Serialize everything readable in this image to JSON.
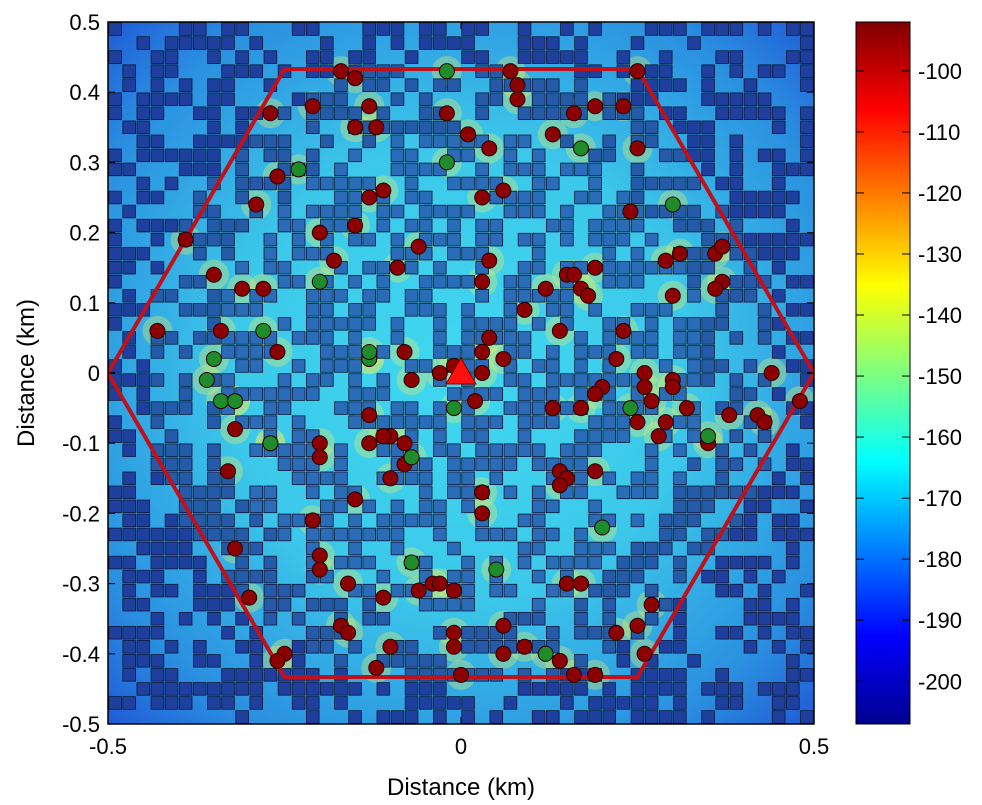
{
  "chart_data": {
    "type": "scatter",
    "title": "",
    "xlabel": "Distance (km)",
    "ylabel": "Distance (km)",
    "xlim": [
      -0.5,
      0.5
    ],
    "ylim": [
      -0.5,
      0.5
    ],
    "xticks": [
      -0.5,
      0,
      0.5
    ],
    "xtick_labels": [
      "-0.5",
      "0",
      "0.5"
    ],
    "yticks": [
      0.5,
      0.4,
      0.3,
      0.2,
      0.1,
      0,
      -0.1,
      -0.2,
      -0.3,
      -0.4,
      -0.5
    ],
    "ytick_labels": [
      "0.5",
      "0.4",
      "0.3",
      "0.2",
      "0.1",
      "0",
      "-0.1",
      "-0.2",
      "-0.3",
      "-0.4",
      "-0.5"
    ],
    "colorbar": {
      "colormap": "jet",
      "range": [
        -207,
        -92
      ],
      "ticks": [
        -100,
        -110,
        -120,
        -130,
        -140,
        -150,
        -160,
        -170,
        -180,
        -190,
        -200
      ],
      "tick_labels": [
        "-100",
        "-110",
        "-120",
        "-130",
        "-140",
        "-150",
        "-160",
        "-170",
        "-180",
        "-190",
        "-200"
      ]
    },
    "hexagon": {
      "color": "#c0101a",
      "vertices": [
        [
          0.5,
          0
        ],
        [
          0.25,
          0.433
        ],
        [
          -0.25,
          0.433
        ],
        [
          -0.5,
          0
        ],
        [
          -0.25,
          -0.433
        ],
        [
          0.25,
          -0.433
        ]
      ]
    },
    "base_station": {
      "x": 0,
      "y": 0,
      "color": "#ff1010",
      "marker": "triangle"
    },
    "grid_cells": {
      "spacing": 0.02,
      "color": "#1e5aa0",
      "marker": "square"
    },
    "series": [
      {
        "marker": "circle",
        "color": "#8b0000",
        "points": [
          [
            -0.17,
            0.43
          ],
          [
            -0.15,
            0.42
          ],
          [
            0.07,
            0.43
          ],
          [
            0.08,
            0.41
          ],
          [
            0.08,
            0.39
          ],
          [
            0.25,
            0.43
          ],
          [
            0.19,
            0.38
          ],
          [
            0.23,
            0.38
          ],
          [
            -0.27,
            0.37
          ],
          [
            -0.21,
            0.38
          ],
          [
            -0.13,
            0.38
          ],
          [
            -0.02,
            0.37
          ],
          [
            0.16,
            0.37
          ],
          [
            -0.15,
            0.35
          ],
          [
            -0.12,
            0.35
          ],
          [
            0.01,
            0.34
          ],
          [
            0.04,
            0.32
          ],
          [
            0.13,
            0.34
          ],
          [
            0.25,
            0.32
          ],
          [
            -0.26,
            0.28
          ],
          [
            -0.13,
            0.25
          ],
          [
            -0.11,
            0.26
          ],
          [
            0.03,
            0.25
          ],
          [
            0.06,
            0.26
          ],
          [
            -0.29,
            0.24
          ],
          [
            0.24,
            0.23
          ],
          [
            -0.2,
            0.2
          ],
          [
            -0.15,
            0.21
          ],
          [
            -0.06,
            0.18
          ],
          [
            0.36,
            0.17
          ],
          [
            0.37,
            0.18
          ],
          [
            -0.39,
            0.19
          ],
          [
            -0.18,
            0.16
          ],
          [
            0.04,
            0.16
          ],
          [
            0.29,
            0.16
          ],
          [
            0.31,
            0.17
          ],
          [
            -0.35,
            0.14
          ],
          [
            -0.09,
            0.15
          ],
          [
            0.15,
            0.14
          ],
          [
            0.16,
            0.14
          ],
          [
            0.19,
            0.15
          ],
          [
            0.37,
            0.13
          ],
          [
            -0.31,
            0.12
          ],
          [
            -0.28,
            0.12
          ],
          [
            0.03,
            0.13
          ],
          [
            0.12,
            0.12
          ],
          [
            0.17,
            0.12
          ],
          [
            0.36,
            0.12
          ],
          [
            0.3,
            0.11
          ],
          [
            0.18,
            0.11
          ],
          [
            0.09,
            0.09
          ],
          [
            -0.43,
            0.06
          ],
          [
            -0.34,
            0.06
          ],
          [
            0.04,
            0.05
          ],
          [
            0.14,
            0.06
          ],
          [
            0.23,
            0.06
          ],
          [
            -0.26,
            0.03
          ],
          [
            0.03,
            0.03
          ],
          [
            -0.08,
            0.03
          ],
          [
            -0.03,
            0.0
          ],
          [
            -0.01,
            0.01
          ],
          [
            0.06,
            0.02
          ],
          [
            0.22,
            0.02
          ],
          [
            0.03,
            0.0
          ],
          [
            -0.07,
            -0.01
          ],
          [
            0.26,
            0.0
          ],
          [
            0.3,
            -0.01
          ],
          [
            0.44,
            0.0
          ],
          [
            0.2,
            -0.02
          ],
          [
            0.26,
            -0.02
          ],
          [
            0.48,
            -0.04
          ],
          [
            -0.32,
            -0.04
          ],
          [
            0.02,
            -0.04
          ],
          [
            0.19,
            -0.03
          ],
          [
            0.27,
            -0.04
          ],
          [
            0.3,
            -0.02
          ],
          [
            0.32,
            -0.05
          ],
          [
            0.42,
            -0.06
          ],
          [
            0.43,
            -0.07
          ],
          [
            -0.13,
            -0.06
          ],
          [
            0.13,
            -0.05
          ],
          [
            0.17,
            -0.05
          ],
          [
            -0.32,
            -0.08
          ],
          [
            0.25,
            -0.07
          ],
          [
            0.28,
            -0.09
          ],
          [
            0.29,
            -0.07
          ],
          [
            0.38,
            -0.06
          ],
          [
            -0.1,
            -0.09
          ],
          [
            -0.13,
            -0.1
          ],
          [
            -0.2,
            -0.1
          ],
          [
            -0.11,
            -0.09
          ],
          [
            -0.08,
            -0.1
          ],
          [
            0.35,
            -0.1
          ],
          [
            -0.2,
            -0.12
          ],
          [
            -0.08,
            -0.13
          ],
          [
            -0.1,
            -0.15
          ],
          [
            -0.33,
            -0.14
          ],
          [
            0.14,
            -0.14
          ],
          [
            0.15,
            -0.15
          ],
          [
            0.14,
            -0.16
          ],
          [
            0.19,
            -0.14
          ],
          [
            0.03,
            -0.17
          ],
          [
            -0.15,
            -0.18
          ],
          [
            0.03,
            -0.2
          ],
          [
            -0.21,
            -0.21
          ],
          [
            -0.32,
            -0.25
          ],
          [
            -0.2,
            -0.26
          ],
          [
            -0.2,
            -0.28
          ],
          [
            -0.16,
            -0.3
          ],
          [
            -0.04,
            -0.3
          ],
          [
            -0.03,
            -0.3
          ],
          [
            0.15,
            -0.3
          ],
          [
            0.17,
            -0.3
          ],
          [
            -0.3,
            -0.32
          ],
          [
            -0.11,
            -0.32
          ],
          [
            -0.06,
            -0.31
          ],
          [
            -0.01,
            -0.31
          ],
          [
            0.27,
            -0.33
          ],
          [
            -0.17,
            -0.36
          ],
          [
            -0.16,
            -0.37
          ],
          [
            0.06,
            -0.36
          ],
          [
            0.22,
            -0.37
          ],
          [
            0.25,
            -0.36
          ],
          [
            -0.01,
            -0.37
          ],
          [
            -0.01,
            -0.39
          ],
          [
            -0.1,
            -0.39
          ],
          [
            0.06,
            -0.4
          ],
          [
            0.09,
            -0.39
          ],
          [
            0.26,
            -0.4
          ],
          [
            -0.25,
            -0.4
          ],
          [
            -0.26,
            -0.41
          ],
          [
            -0.12,
            -0.42
          ],
          [
            0.14,
            -0.41
          ],
          [
            0.16,
            -0.43
          ],
          [
            0.19,
            -0.43
          ],
          [
            0.0,
            -0.43
          ]
        ]
      },
      {
        "marker": "circle",
        "color": "#1e8c2a",
        "points": [
          [
            -0.02,
            0.43
          ],
          [
            -0.23,
            0.29
          ],
          [
            -0.02,
            0.3
          ],
          [
            0.17,
            0.32
          ],
          [
            0.3,
            0.24
          ],
          [
            -0.2,
            0.13
          ],
          [
            -0.28,
            0.06
          ],
          [
            -0.35,
            0.02
          ],
          [
            -0.36,
            -0.01
          ],
          [
            -0.27,
            -0.1
          ],
          [
            -0.34,
            -0.04
          ],
          [
            -0.27,
            -0.1
          ],
          [
            -0.13,
            0.02
          ],
          [
            -0.01,
            -0.05
          ],
          [
            0.24,
            -0.05
          ],
          [
            0.35,
            -0.09
          ],
          [
            -0.07,
            -0.12
          ],
          [
            0.2,
            -0.22
          ],
          [
            0.05,
            -0.28
          ],
          [
            0.12,
            -0.4
          ],
          [
            -0.13,
            0.02
          ],
          [
            -0.32,
            -0.04
          ],
          [
            -0.13,
            0.03
          ],
          [
            -0.07,
            -0.27
          ]
        ]
      }
    ]
  }
}
